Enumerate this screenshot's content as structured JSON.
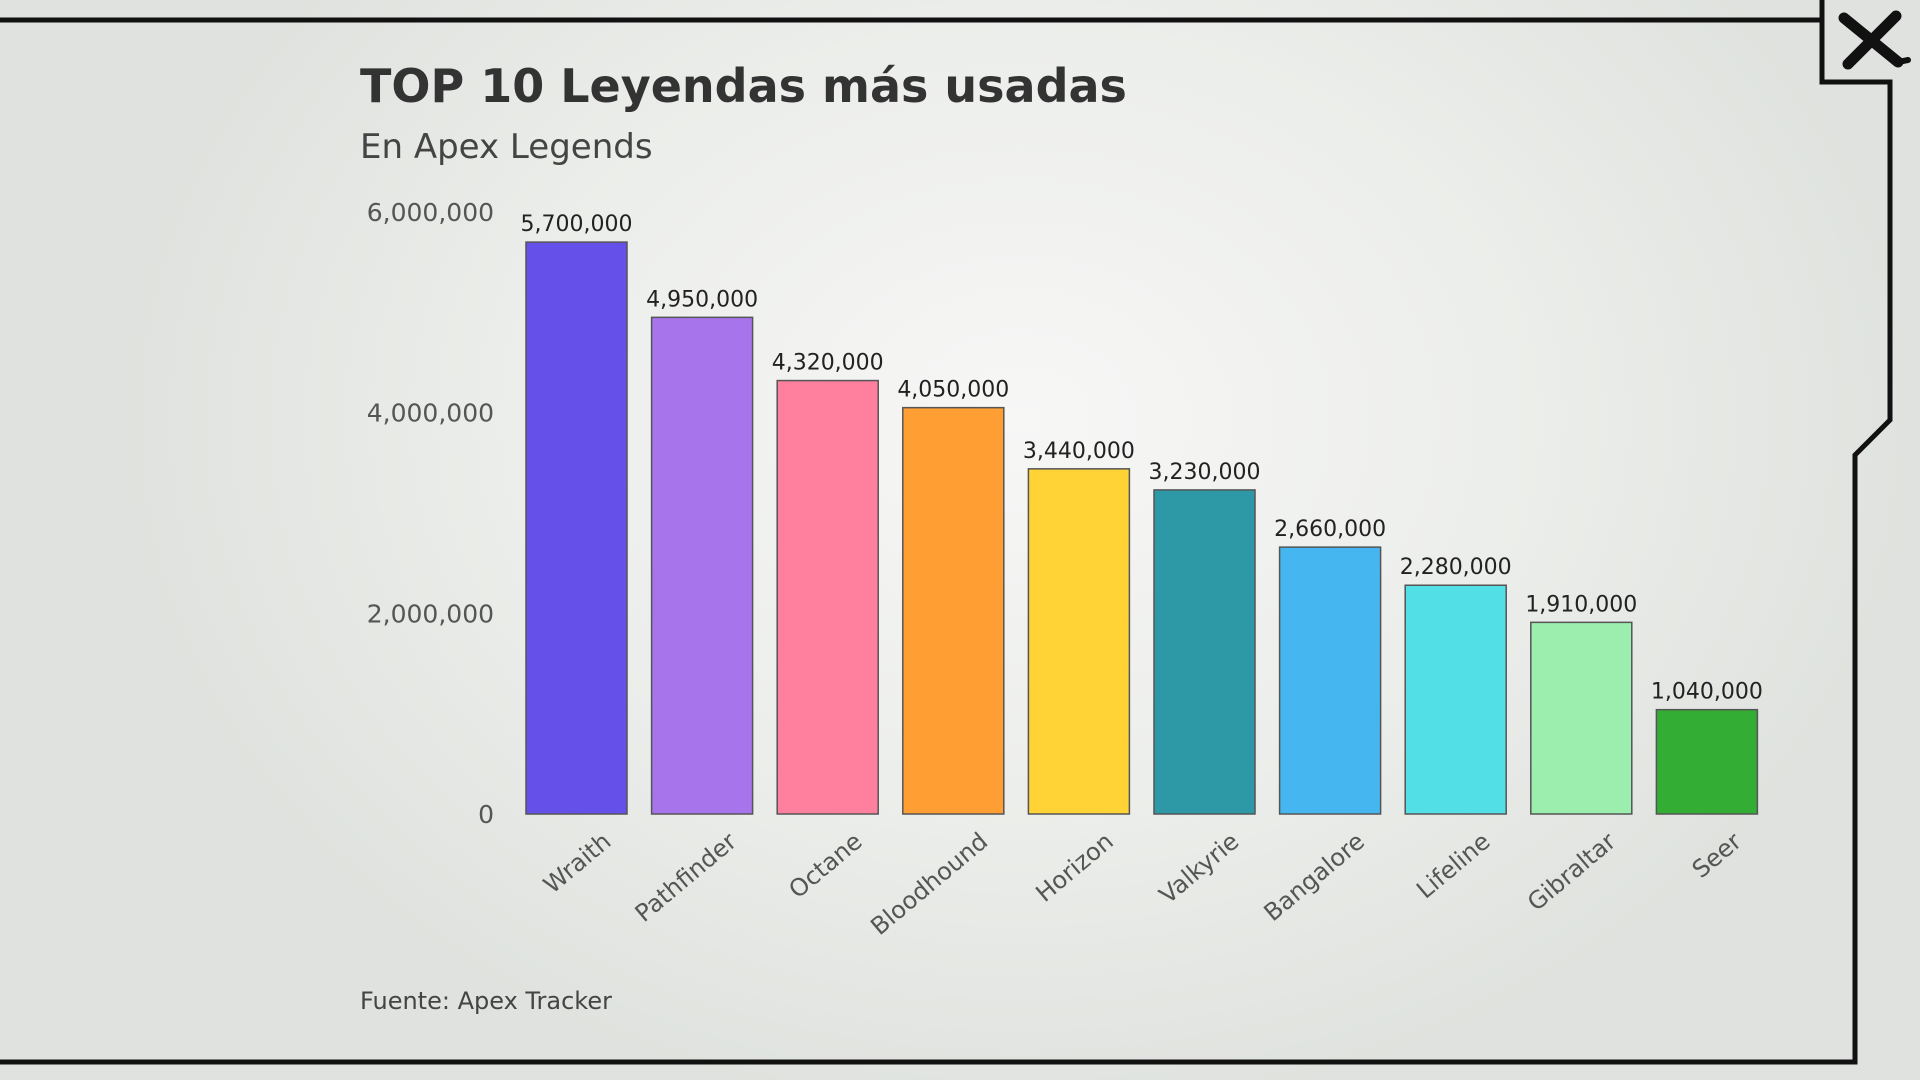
{
  "close_button": {
    "icon": "close-icon",
    "glyph": "X"
  },
  "chart_data": {
    "type": "bar",
    "title": "TOP 10 Leyendas más usadas",
    "subtitle": "En Apex Legends",
    "source": "Fuente: Apex Tracker",
    "xlabel": "",
    "ylabel": "",
    "ylim": [
      0,
      6000000
    ],
    "yticks": [
      0,
      2000000,
      4000000,
      6000000
    ],
    "ytick_labels": [
      "0",
      "2,000,000",
      "4,000,000",
      "6,000,000"
    ],
    "grid": false,
    "legend": "none",
    "categories": [
      "Wraith",
      "Pathfinder",
      "Octane",
      "Bloodhound",
      "Horizon",
      "Valkyrie",
      "Bangalore",
      "Lifeline",
      "Gibraltar",
      "Seer"
    ],
    "values": [
      5700000,
      4950000,
      4320000,
      4050000,
      3440000,
      3230000,
      2660000,
      2280000,
      1910000,
      1040000
    ],
    "value_labels": [
      "5,700,000",
      "4,950,000",
      "4,320,000",
      "4,050,000",
      "3,440,000",
      "3,230,000",
      "2,660,000",
      "2,280,000",
      "1,910,000",
      "1,040,000"
    ],
    "colors": [
      "#6650ea",
      "#a874ec",
      "#ff7f9e",
      "#ff9e33",
      "#ffd236",
      "#2e99a6",
      "#45b6ef",
      "#52e0e6",
      "#9ceeae",
      "#33ad33"
    ]
  }
}
